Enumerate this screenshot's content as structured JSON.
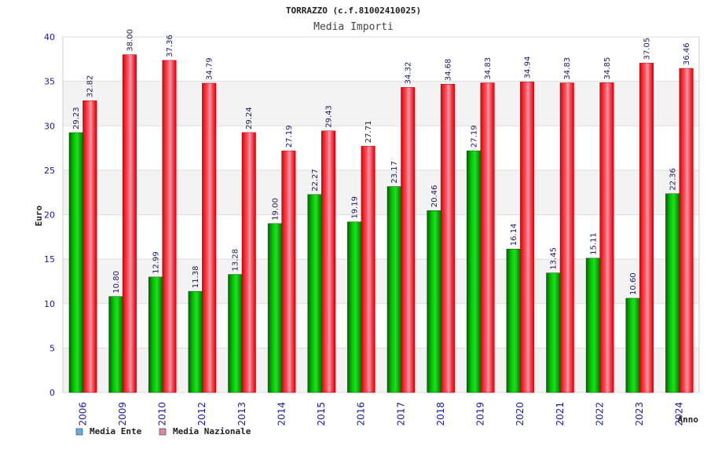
{
  "chart_data": {
    "type": "bar",
    "title": "TORRAZZO (c.f.81002410025)",
    "subtitle": "Media Importi",
    "xlabel": "Anno",
    "ylabel": "Euro",
    "ylim": [
      0,
      40
    ],
    "yticks": [
      0,
      5,
      10,
      15,
      20,
      25,
      30,
      35,
      40
    ],
    "grid": true,
    "legend_position": "bottom-left",
    "categories": [
      "2006",
      "2009",
      "2010",
      "2012",
      "2013",
      "2014",
      "2015",
      "2016",
      "2017",
      "2018",
      "2019",
      "2020",
      "2021",
      "2022",
      "2023",
      "2024"
    ],
    "series": [
      {
        "name": "Media Ente",
        "color": "#00aa00",
        "legend_color": "#66aaee",
        "values": [
          29.23,
          10.8,
          12.99,
          11.38,
          13.28,
          19.0,
          22.27,
          19.19,
          23.17,
          20.46,
          27.19,
          16.14,
          13.45,
          15.11,
          10.6,
          22.36
        ],
        "labels": [
          "29.23",
          "10.80",
          "12.99",
          "11.38",
          "13.28",
          "19.00",
          "22.27",
          "19.19",
          "23.17",
          "20.46",
          "27.19",
          "16.14",
          "13.45",
          "15.11",
          "10.60",
          "22.36"
        ]
      },
      {
        "name": "Media Nazionale",
        "color": "#ee1111",
        "legend_color": "#dd88aa",
        "values": [
          32.82,
          38.0,
          37.36,
          34.79,
          29.24,
          27.19,
          29.43,
          27.71,
          34.32,
          34.68,
          34.83,
          34.94,
          34.83,
          34.85,
          37.05,
          36.46
        ],
        "labels": [
          "32.82",
          "38.00",
          "37.36",
          "34.79",
          "29.24",
          "27.19",
          "29.43",
          "27.71",
          "34.32",
          "34.68",
          "34.83",
          "34.94",
          "34.83",
          "34.85",
          "37.05",
          "36.46"
        ]
      }
    ]
  }
}
